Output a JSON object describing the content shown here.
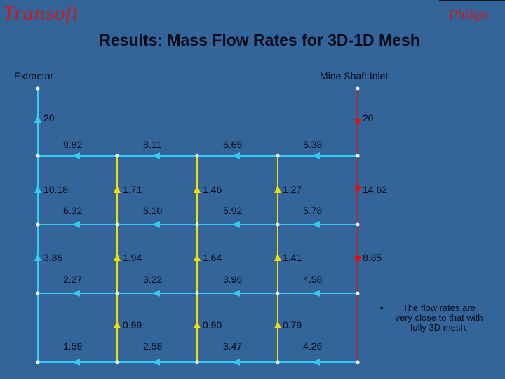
{
  "header": {
    "logo_left": "Transoft",
    "logo_right": "Philips",
    "title": "Results: Mass Flow Rates for 3D-1D Mesh"
  },
  "labels": {
    "extractor": "Extractor",
    "mine_shaft_inlet": "Mine Shaft Inlet"
  },
  "colors": {
    "background": "#34659a",
    "horizontal_duct": "#33ccf0",
    "vertical_duct": "#f0e000",
    "inlet_duct": "#e01010",
    "arrow_up": "#f0e000",
    "extractor_arrow": "#33ccf0",
    "node": "#ffffff"
  },
  "flows": {
    "left_column": [
      "20",
      "10.18",
      "3.86"
    ],
    "right_column": [
      "20",
      "14.62",
      "8.85"
    ],
    "row1_horizontal": [
      "9.82",
      "8.11",
      "6.65",
      "5.38"
    ],
    "row2_vertical": [
      "1.71",
      "1.46",
      "1.27"
    ],
    "row2_horizontal": [
      "6.32",
      "6.10",
      "5.92",
      "5.78"
    ],
    "row3_vertical": [
      "1.94",
      "1.64",
      "1.41"
    ],
    "row3_horizontal": [
      "2.27",
      "3.22",
      "3.96",
      "4.58"
    ],
    "row4_vertical": [
      "0.99",
      "0.90",
      "0.79"
    ],
    "row4_horizontal": [
      "1.59",
      "2.58",
      "3.47",
      "4.26"
    ]
  },
  "note": {
    "bullet": "•",
    "text": "The flow rates are very close to that with fully 3D mesh."
  }
}
